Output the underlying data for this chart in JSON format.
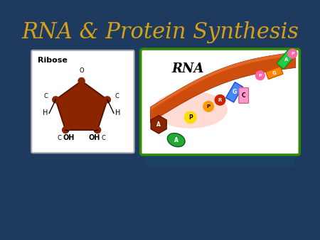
{
  "title": "RNA & Protein Synthesis",
  "title_color": "#D4A017",
  "title_fontsize": 22,
  "bg_color": "#1E3A5F",
  "ribose_label": "Ribose",
  "rna_label": "RNA",
  "ribose_box_color": "#FFFFFF",
  "ribose_box_edge": "#AAAAAA",
  "rna_box_color": "#FFFFFF",
  "rna_box_edge": "#2E8B00",
  "pentagon_color": "#8B2500"
}
